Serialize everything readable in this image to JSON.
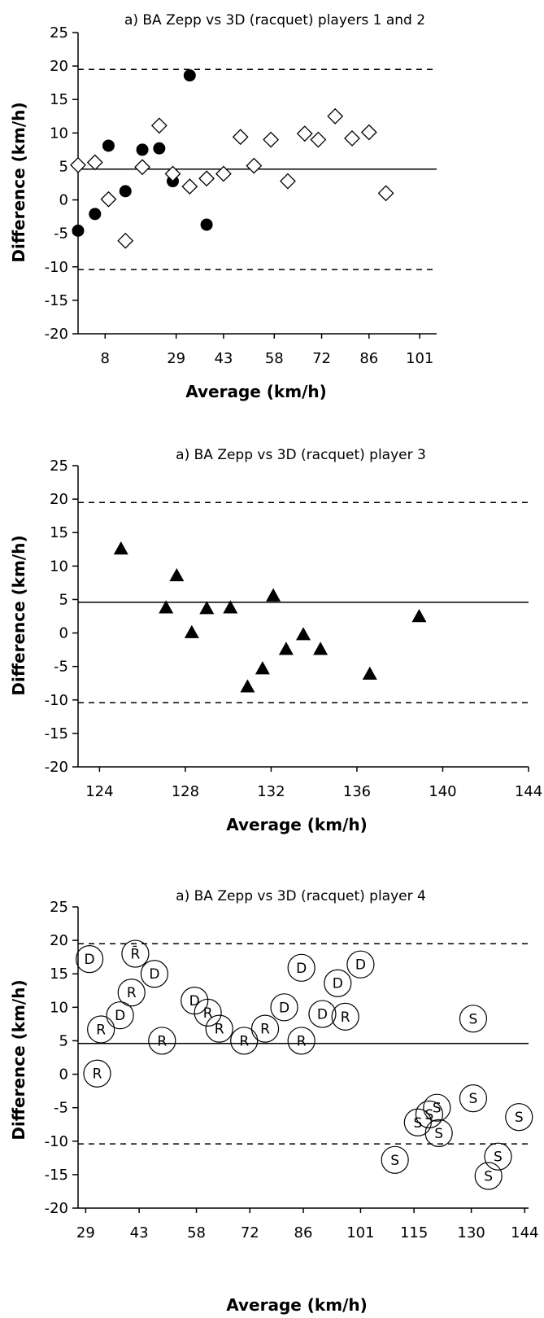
{
  "chart_data": [
    {
      "type": "scatter",
      "title": "a) BA Zepp vs 3D (racquet) players 1 and 2",
      "xlabel": "Average (km/h)",
      "ylabel": "Difference (km/h)",
      "ylim": [
        -20,
        25
      ],
      "yticks": [
        25,
        20,
        15,
        10,
        5,
        0,
        -5,
        -10,
        -15,
        -20
      ],
      "xlim": [
        0,
        106
      ],
      "xticks": [
        8,
        29,
        43,
        58,
        72,
        86,
        101
      ],
      "xtick_labels": [
        "8",
        "29",
        "43",
        "58",
        "72",
        "86",
        "101"
      ],
      "mean_line": 4.6,
      "limit_lines": [
        19.5,
        -10.4
      ],
      "grid": false,
      "legend": "none",
      "series": [
        {
          "marker": "filled-circle",
          "points": [
            {
              "x": 0,
              "y": -4.6
            },
            {
              "x": 5,
              "y": -2.1
            },
            {
              "x": 9,
              "y": 8.1
            },
            {
              "x": 14,
              "y": 1.3
            },
            {
              "x": 19,
              "y": 7.5
            },
            {
              "x": 24,
              "y": 7.7
            },
            {
              "x": 28,
              "y": 2.8
            },
            {
              "x": 33,
              "y": 18.6
            },
            {
              "x": 38,
              "y": -3.7
            }
          ]
        },
        {
          "marker": "open-diamond",
          "points": [
            {
              "x": 0,
              "y": 5.2
            },
            {
              "x": 5,
              "y": 5.6
            },
            {
              "x": 9,
              "y": 0.1
            },
            {
              "x": 14,
              "y": -6.1
            },
            {
              "x": 19,
              "y": 4.9
            },
            {
              "x": 24,
              "y": 11.1
            },
            {
              "x": 28,
              "y": 3.9
            },
            {
              "x": 33,
              "y": 2.0
            },
            {
              "x": 38,
              "y": 3.2
            },
            {
              "x": 43,
              "y": 3.9
            },
            {
              "x": 48,
              "y": 9.4
            },
            {
              "x": 52,
              "y": 5.1
            },
            {
              "x": 57,
              "y": 9.0
            },
            {
              "x": 62,
              "y": 2.8
            },
            {
              "x": 67,
              "y": 9.9
            },
            {
              "x": 71,
              "y": 9.0
            },
            {
              "x": 76,
              "y": 12.5
            },
            {
              "x": 81,
              "y": 9.2
            },
            {
              "x": 86,
              "y": 10.1
            },
            {
              "x": 91,
              "y": 1.0
            }
          ]
        }
      ]
    },
    {
      "type": "scatter",
      "title": "a) BA Zepp vs 3D (racquet) player 3",
      "xlabel": "Average (km/h)",
      "ylabel": "Difference (km/h)",
      "ylim": [
        -20,
        25
      ],
      "yticks": [
        25,
        20,
        15,
        10,
        5,
        0,
        -5,
        -10,
        -15,
        -20
      ],
      "xlim": [
        123,
        144
      ],
      "xticks": [
        124,
        128,
        132,
        136,
        140,
        144
      ],
      "xtick_labels": [
        "124",
        "128",
        "132",
        "136",
        "140",
        "144"
      ],
      "mean_line": 4.6,
      "limit_lines": [
        19.5,
        -10.4
      ],
      "grid": false,
      "legend": "none",
      "series": [
        {
          "marker": "filled-triangle",
          "points": [
            {
              "x": 125.0,
              "y": 12.6
            },
            {
              "x": 127.1,
              "y": 3.8
            },
            {
              "x": 127.6,
              "y": 8.6
            },
            {
              "x": 128.3,
              "y": 0.1
            },
            {
              "x": 129.0,
              "y": 3.7
            },
            {
              "x": 130.1,
              "y": 3.8
            },
            {
              "x": 130.9,
              "y": -8.0
            },
            {
              "x": 131.6,
              "y": -5.3
            },
            {
              "x": 132.1,
              "y": 5.6
            },
            {
              "x": 132.7,
              "y": -2.4
            },
            {
              "x": 133.5,
              "y": -0.2
            },
            {
              "x": 134.3,
              "y": -2.4
            },
            {
              "x": 136.6,
              "y": -6.1
            },
            {
              "x": 138.9,
              "y": 2.5
            }
          ]
        }
      ]
    },
    {
      "type": "scatter",
      "title": "a) BA Zepp vs 3D (racquet) player 4",
      "xlabel": "Average (km/h)",
      "ylabel": "Difference (km/h)",
      "ylim": [
        -20,
        25
      ],
      "yticks": [
        25,
        20,
        15,
        10,
        5,
        0,
        -5,
        -10,
        -15,
        -20
      ],
      "xlim": [
        27,
        145
      ],
      "xticks": [
        29,
        43,
        58,
        72,
        86,
        101,
        115,
        130,
        144
      ],
      "xtick_labels": [
        "29",
        "43",
        "58",
        "72",
        "86",
        "101",
        "115",
        "130",
        "144"
      ],
      "mean_line": 4.6,
      "limit_lines": [
        19.5,
        -10.4
      ],
      "grid": false,
      "legend": "none",
      "series": [
        {
          "marker": "circle-letter",
          "points": [
            {
              "x": 30.0,
              "y": 17.2,
              "label": "D"
            },
            {
              "x": 32.0,
              "y": 0.1,
              "label": "R"
            },
            {
              "x": 33.0,
              "y": 6.7,
              "label": "R"
            },
            {
              "x": 38.0,
              "y": 8.8,
              "label": "D"
            },
            {
              "x": 41.0,
              "y": 12.2,
              "label": "R"
            },
            {
              "x": 42.0,
              "y": 18.0,
              "label": "R̄"
            },
            {
              "x": 47.0,
              "y": 15.0,
              "label": "D"
            },
            {
              "x": 49.0,
              "y": 5.0,
              "label": "R"
            },
            {
              "x": 57.5,
              "y": 11.0,
              "label": "D"
            },
            {
              "x": 61.0,
              "y": 9.2,
              "label": "R"
            },
            {
              "x": 64.0,
              "y": 6.8,
              "label": "R"
            },
            {
              "x": 70.5,
              "y": 5.0,
              "label": "R"
            },
            {
              "x": 76.0,
              "y": 6.8,
              "label": "R"
            },
            {
              "x": 81.0,
              "y": 10.0,
              "label": "D"
            },
            {
              "x": 85.5,
              "y": 15.9,
              "label": "D"
            },
            {
              "x": 85.5,
              "y": 5.0,
              "label": "R"
            },
            {
              "x": 91.0,
              "y": 9.0,
              "label": "D"
            },
            {
              "x": 95.0,
              "y": 13.6,
              "label": "D"
            },
            {
              "x": 97.0,
              "y": 8.6,
              "label": "R"
            },
            {
              "x": 101.0,
              "y": 16.4,
              "label": "D"
            },
            {
              "x": 110.0,
              "y": -12.8,
              "label": "S"
            },
            {
              "x": 116.0,
              "y": -7.2,
              "label": "S"
            },
            {
              "x": 119.0,
              "y": -6.0,
              "label": "S"
            },
            {
              "x": 121.0,
              "y": -5.0,
              "label": "S"
            },
            {
              "x": 121.5,
              "y": -8.8,
              "label": "S"
            },
            {
              "x": 130.5,
              "y": 8.3,
              "label": "S"
            },
            {
              "x": 130.5,
              "y": -3.6,
              "label": "S"
            },
            {
              "x": 134.5,
              "y": -15.2,
              "label": "S"
            },
            {
              "x": 137.0,
              "y": -12.3,
              "label": "S"
            },
            {
              "x": 142.5,
              "y": -6.4,
              "label": "S"
            }
          ]
        }
      ]
    }
  ]
}
